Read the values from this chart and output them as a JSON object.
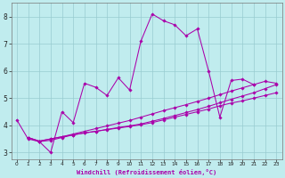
{
  "xlabel": "Windchill (Refroidissement éolien,°C)",
  "bg_color": "#c0ecee",
  "grid_color": "#98ccd0",
  "line_color": "#aa00aa",
  "xlim": [
    -0.5,
    23.5
  ],
  "ylim": [
    2.75,
    8.5
  ],
  "xticks": [
    0,
    1,
    2,
    3,
    4,
    5,
    6,
    7,
    8,
    9,
    10,
    11,
    12,
    13,
    14,
    15,
    16,
    17,
    18,
    19,
    20,
    21,
    22,
    23
  ],
  "yticks": [
    3,
    4,
    5,
    6,
    7,
    8
  ],
  "series_x": [
    [
      0,
      1,
      2,
      3,
      4,
      5,
      6,
      7,
      8,
      9,
      10,
      11,
      12,
      13,
      14,
      15,
      16,
      17,
      18,
      19,
      20,
      21
    ],
    [
      1,
      2,
      3,
      4,
      5,
      6,
      7,
      8,
      9,
      10,
      11,
      12,
      13,
      14,
      15,
      16,
      17,
      18,
      19,
      20,
      21,
      22,
      23
    ],
    [
      1,
      2,
      3,
      4,
      5,
      6,
      7,
      8,
      9,
      10,
      11,
      12,
      13,
      14,
      15,
      16,
      17,
      18,
      19,
      20,
      21,
      22,
      23
    ],
    [
      1,
      2,
      3,
      4,
      5,
      6,
      7,
      8,
      9,
      10,
      11,
      12,
      13,
      14,
      15,
      16,
      17,
      18,
      19,
      20,
      21,
      22,
      23
    ]
  ],
  "series_y": [
    [
      4.2,
      3.5,
      3.4,
      3.0,
      4.5,
      4.1,
      5.55,
      5.4,
      5.1,
      5.75,
      5.3,
      7.1,
      8.1,
      7.85,
      7.7,
      7.3,
      7.55,
      6.0,
      4.3,
      5.65,
      5.7,
      5.5
    ],
    [
      3.55,
      3.4,
      3.45,
      3.55,
      3.65,
      3.72,
      3.78,
      3.84,
      3.9,
      3.96,
      4.02,
      4.1,
      4.2,
      4.3,
      4.4,
      4.5,
      4.6,
      4.72,
      4.82,
      4.9,
      5.0,
      5.1,
      5.2
    ],
    [
      3.55,
      3.42,
      3.5,
      3.58,
      3.65,
      3.72,
      3.78,
      3.85,
      3.92,
      3.98,
      4.05,
      4.15,
      4.25,
      4.36,
      4.47,
      4.58,
      4.7,
      4.83,
      4.96,
      5.08,
      5.2,
      5.35,
      5.5
    ],
    [
      3.55,
      3.42,
      3.5,
      3.58,
      3.68,
      3.78,
      3.88,
      3.98,
      4.08,
      4.18,
      4.3,
      4.42,
      4.54,
      4.65,
      4.76,
      4.88,
      5.0,
      5.13,
      5.26,
      5.38,
      5.5,
      5.62,
      5.55
    ]
  ]
}
